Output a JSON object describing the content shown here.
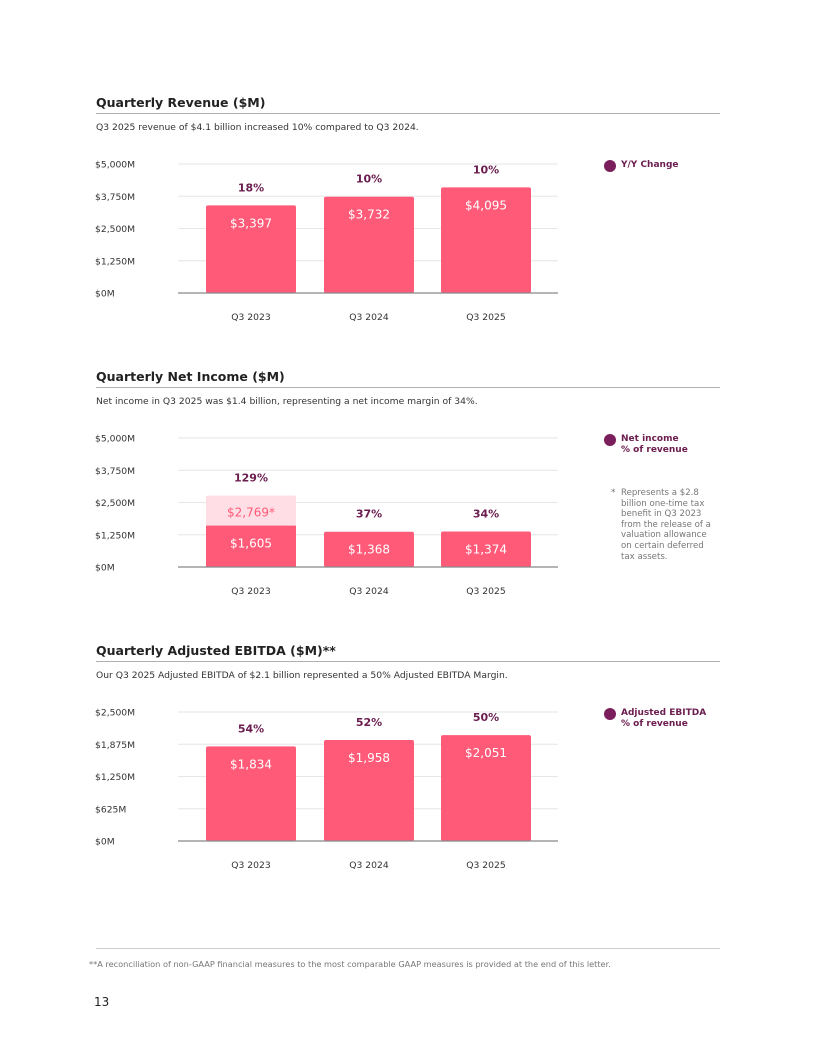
{
  "colors": {
    "bar": "#ff5a78",
    "bar_light": "#ffdfe5",
    "pct_text": "#6b1d4f",
    "legend_dot": "#7a1f5c",
    "bar_label": "#ffffff",
    "bar_label_light": "#ff5a78",
    "axis_text": "#333333",
    "grid": "#e6e6e6",
    "axis_line": "#888888"
  },
  "sections": {
    "revenue": {
      "title": "Quarterly Revenue ($M)",
      "subtitle": "Q3 2025 revenue of $4.1 billion increased 10% compared to Q3 2024.",
      "legend_label": "Y/Y Change"
    },
    "net_income": {
      "title": "Quarterly Net Income ($M)",
      "subtitle": "Net income in Q3 2025 was $1.4 billion, representing a net income margin of 34%.",
      "legend_line1": "Net income",
      "legend_line2": "% of revenue",
      "note_star": "*",
      "note": "Represents a $2.8 billion one-time tax benefit in Q3 2023 from the release of a valuation allowance on certain deferred tax assets."
    },
    "ebitda": {
      "title": "Quarterly Adjusted EBITDA ($M)**",
      "subtitle": "Our Q3 2025 Adjusted EBITDA of $2.1 billion represented a 50% Adjusted EBITDA Margin.",
      "legend_line1": "Adjusted EBITDA",
      "legend_line2": "% of revenue"
    }
  },
  "chart_data": [
    {
      "id": "revenue",
      "type": "bar",
      "title": "Quarterly Revenue ($M)",
      "categories": [
        "Q3 2023",
        "Q3 2024",
        "Q3 2025"
      ],
      "values": [
        3397,
        3732,
        4095
      ],
      "value_labels": [
        "$3,397",
        "$3,732",
        "$4,095"
      ],
      "pct_labels": [
        "18%",
        "10%",
        "10%"
      ],
      "yticks": [
        0,
        1250,
        2500,
        3750,
        5000
      ],
      "ytick_labels": [
        "$0M",
        "$1,250M",
        "$2,500M",
        "$3,750M",
        "$5,000M"
      ],
      "ylim": [
        0,
        5000
      ],
      "legend": "Y/Y Change"
    },
    {
      "id": "net_income",
      "type": "bar",
      "title": "Quarterly Net Income ($M)",
      "categories": [
        "Q3 2023",
        "Q3 2024",
        "Q3 2025"
      ],
      "values": [
        1605,
        1368,
        1374
      ],
      "value_labels": [
        "$1,605",
        "$1,368",
        "$1,374"
      ],
      "stack_top": [
        2769,
        null,
        null
      ],
      "stack_labels": [
        "$2,769*",
        null,
        null
      ],
      "pct_labels": [
        "129%",
        "37%",
        "34%"
      ],
      "yticks": [
        0,
        1250,
        2500,
        3750,
        5000
      ],
      "ytick_labels": [
        "$0M",
        "$1,250M",
        "$2,500M",
        "$3,750M",
        "$5,000M"
      ],
      "ylim": [
        0,
        5000
      ],
      "legend": "Net income % of revenue"
    },
    {
      "id": "ebitda",
      "type": "bar",
      "title": "Quarterly Adjusted EBITDA ($M)**",
      "categories": [
        "Q3 2023",
        "Q3 2024",
        "Q3 2025"
      ],
      "values": [
        1834,
        1958,
        2051
      ],
      "value_labels": [
        "$1,834",
        "$1,958",
        "$2,051"
      ],
      "pct_labels": [
        "54%",
        "52%",
        "50%"
      ],
      "yticks": [
        0,
        625,
        1250,
        1875,
        2500
      ],
      "ytick_labels": [
        "$0M",
        "$625M",
        "$1,250M",
        "$1,875M",
        "$2,500M"
      ],
      "ylim": [
        0,
        2500
      ],
      "legend": "Adjusted EBITDA % of revenue"
    }
  ],
  "footer": {
    "note": "**A reconciliation of non-GAAP financial measures to the most comparable GAAP measures is provided at the end of this letter.",
    "page_number": "13"
  }
}
